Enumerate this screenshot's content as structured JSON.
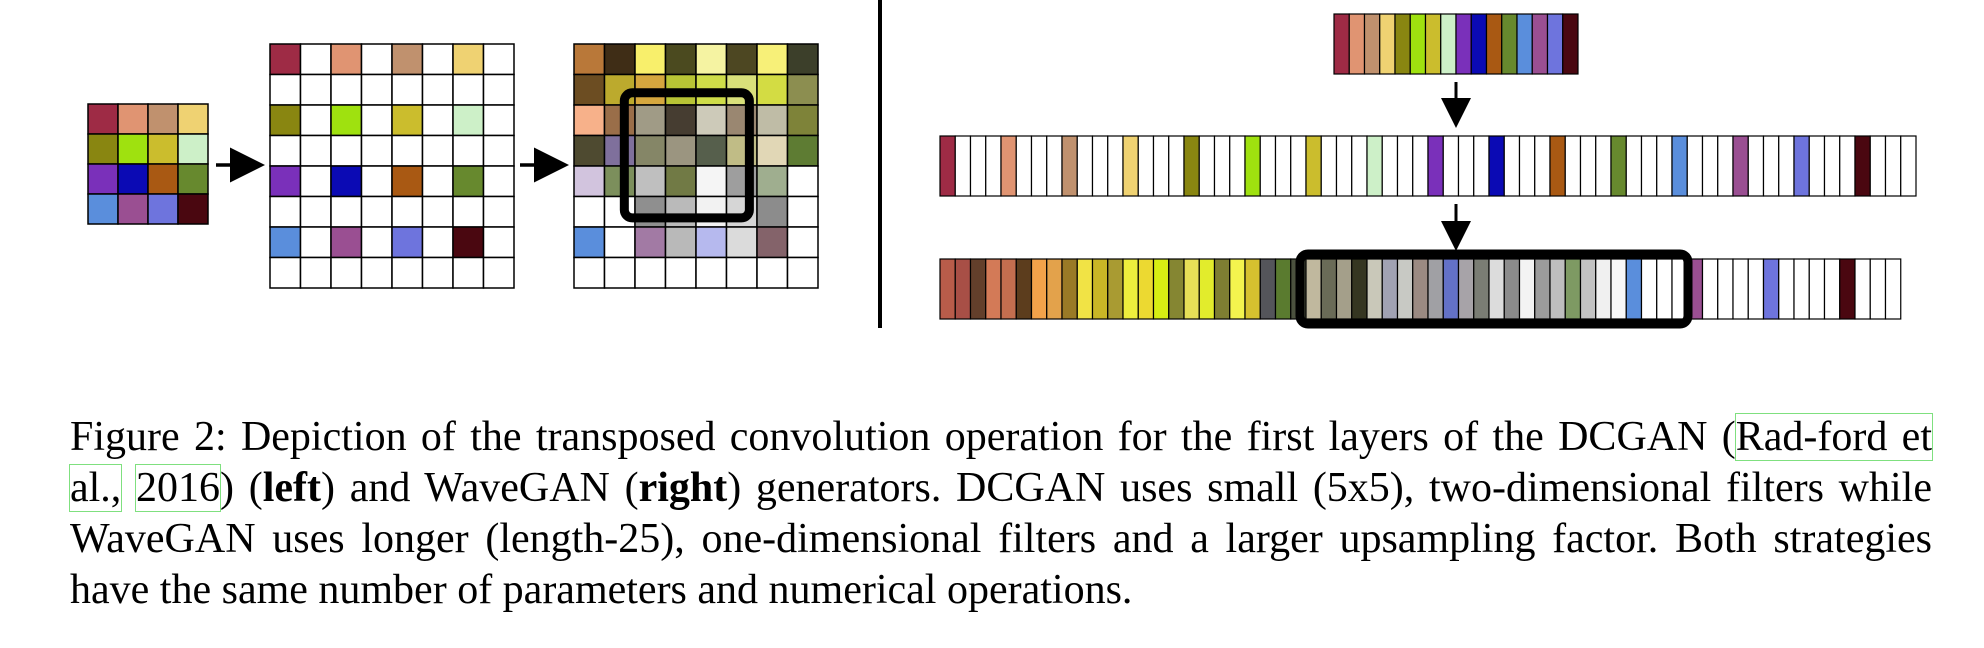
{
  "colors": {
    "input_grid": [
      "#9e2b45",
      "#e09472",
      "#c0916e",
      "#efd272",
      "#898611",
      "#9fe10f",
      "#cbbd2d",
      "#cdf0c8",
      "#7a30ba",
      "#0b0ab4",
      "#a95913",
      "#67892e",
      "#5a8edc",
      "#9a4f92",
      "#6e74dd",
      "#4a0710"
    ],
    "output_grid": [
      [
        "#b97839",
        "#3f2d16",
        "#f8ef6b",
        "#4b4a1f",
        "#f5f3a2",
        "#4d4722",
        "#f7f078",
        "#3c3f2a"
      ],
      [
        "#6c4d22",
        "#bcaa2d",
        "#d5a73e",
        "#b8c435",
        "#cfdd49",
        "#d9e07a",
        "#d3dc43",
        "#8c8e50"
      ],
      [
        "#f7b18a",
        "#9a6e49",
        "#a09b86",
        "#463d31",
        "#cdcab9",
        "#9a8771",
        "#bfbca6",
        "#7e8339"
      ],
      [
        "#4e4a30",
        "#7f709c",
        "#858667",
        "#9b9580",
        "#565f4c",
        "#c0bc86",
        "#e1d7b6",
        "#5e7c33"
      ],
      [
        "#d2c4de",
        "#7c8f5c",
        "#bfbfbf",
        "#717a45",
        "#f5f5f5",
        "#9e9e9e",
        "#9fae8f",
        "#ffffff"
      ],
      [
        "#ffffff",
        "#ffffff",
        "#8f8f8f",
        "#bababa",
        "#f2f2f2",
        "#d6d6d6",
        "#8c8c8c",
        "#ffffff"
      ],
      [
        "#5a8edc",
        "#ffffff",
        "#a27aa4",
        "#b9b9b9",
        "#b6b9ee",
        "#dbdbdb",
        "#84636a",
        "#ffffff"
      ],
      [
        "#ffffff",
        "#ffffff",
        "#ffffff",
        "#ffffff",
        "#ffffff",
        "#ffffff",
        "#ffffff",
        "#ffffff"
      ]
    ],
    "input_strip": [
      "#9e2b45",
      "#e09472",
      "#c0916e",
      "#efd272",
      "#898611",
      "#9fe10f",
      "#cbbd2d",
      "#cdf0c8",
      "#7a30ba",
      "#0b0ab4",
      "#a95913",
      "#67892e",
      "#5a8edc",
      "#9a4f92",
      "#6e74dd",
      "#4a0710"
    ],
    "output_strip": [
      "#b85c4a",
      "#a84f46",
      "#633f2b",
      "#d37a57",
      "#c46e4f",
      "#5c3d1d",
      "#f2a24a",
      "#e3a24b",
      "#9a7a26",
      "#f1e345",
      "#c9b626",
      "#a99b32",
      "#eeee3d",
      "#ecd931",
      "#d7ee13",
      "#858632",
      "#e6df57",
      "#e2ec2c",
      "#7e7e32",
      "#f3f34e",
      "#d6c12f",
      "#54555a",
      "#5a7b2f",
      "#4b513e",
      "#c0b89e",
      "#6a6b57",
      "#a49f8a",
      "#353621",
      "#c9c8b9",
      "#a1a2b3",
      "#c8c9c4",
      "#9b8a82",
      "#a0a0a4",
      "#6371c7",
      "#a7a3a8",
      "#7a7d74",
      "#dcdcdc",
      "#8b8b8b",
      "#f3f3f3",
      "#9c9c9c",
      "#bebebe",
      "#7e9a63",
      "#c2c2c2",
      "#f0f0f0",
      "#f8f8f8",
      "#5a8edc",
      "#ffffff",
      "#ffffff",
      "#ffffff",
      "#9a4f92",
      "#ffffff",
      "#ffffff",
      "#ffffff",
      "#ffffff",
      "#6e74dd",
      "#ffffff",
      "#ffffff",
      "#ffffff",
      "#ffffff",
      "#4a0710",
      "#ffffff",
      "#ffffff",
      "#ffffff"
    ],
    "input_grid_size": 4,
    "sparse_grid_size": 8,
    "output_grid_size": 8,
    "sparse_strip_length": 64,
    "output_strip_length": 63
  },
  "caption": {
    "lead": "Figure 2: Depiction of the transposed convolution operation for the first layers of the DCGAN (",
    "cite1": "Rad-ford et al.,",
    "cite2": "2016",
    "mid1": ") (",
    "left": "left",
    "mid2": ") and WaveGAN (",
    "right": "right",
    "tail": ") generators.  DCGAN uses small (5x5), two-dimensional filters while WaveGAN uses longer (length-25), one-dimensional filters and a larger upsampling factor. Both strategies have the same number of parameters and numerical operations."
  }
}
